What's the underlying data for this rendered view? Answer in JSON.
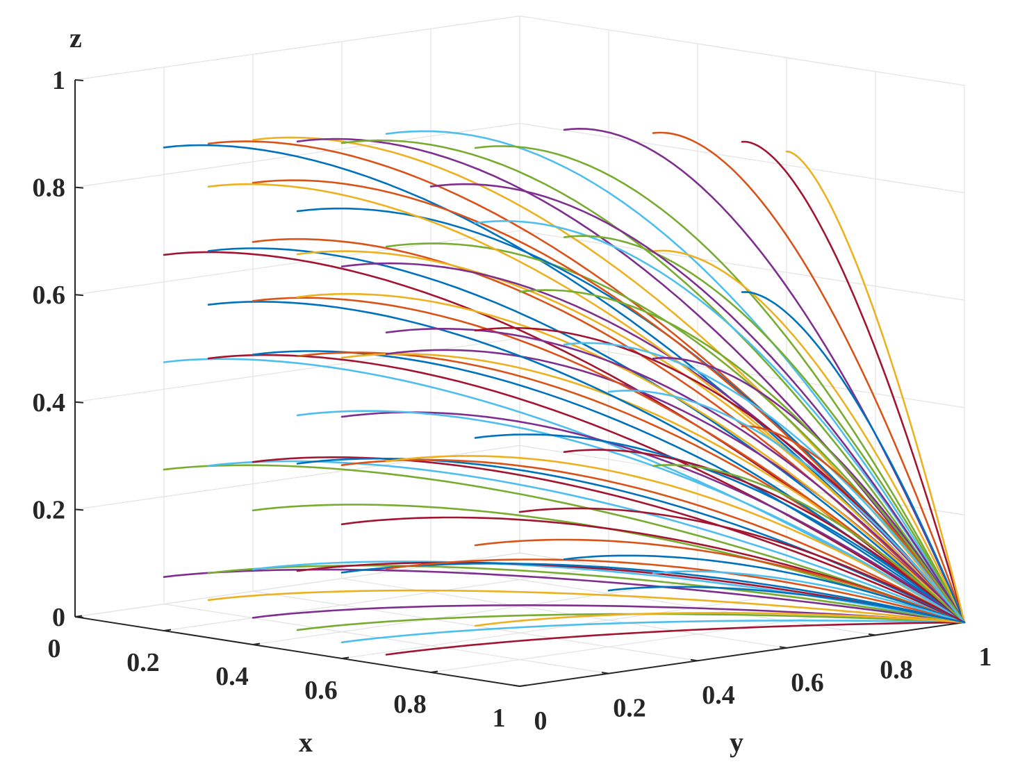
{
  "chart_data": {
    "type": "line3d",
    "xlabel": "x",
    "ylabel": "y",
    "zlabel": "z",
    "xlim": [
      0,
      1
    ],
    "ylim": [
      0,
      1
    ],
    "zlim": [
      0,
      1
    ],
    "x_ticks": [
      "0",
      "0.2",
      "0.4",
      "0.6",
      "0.8",
      "1"
    ],
    "y_ticks": [
      "0",
      "0.2",
      "0.4",
      "0.6",
      "0.8",
      "1"
    ],
    "z_ticks": [
      "0",
      "0.2",
      "0.4",
      "0.6",
      "0.8",
      "1"
    ],
    "grid": true,
    "converges_to": [
      1,
      1,
      0
    ],
    "colors": [
      "#0072BD",
      "#D95319",
      "#EDB120",
      "#7E2F8E",
      "#77AC30",
      "#4DBEEE",
      "#A2142F"
    ],
    "series_starts": [
      [
        0.2,
        0.0,
        0.9
      ],
      [
        0.3,
        0.0,
        0.92
      ],
      [
        0.4,
        0.0,
        0.94
      ],
      [
        0.5,
        0.0,
        0.95
      ],
      [
        0.6,
        0.0,
        0.96
      ],
      [
        0.7,
        0.0,
        0.99
      ],
      [
        0.2,
        0.0,
        0.7
      ],
      [
        0.3,
        0.0,
        0.72
      ],
      [
        0.4,
        0.0,
        0.75
      ],
      [
        0.5,
        0.0,
        0.74
      ],
      [
        0.6,
        0.0,
        0.73
      ],
      [
        0.7,
        0.0,
        0.78
      ],
      [
        0.2,
        0.0,
        0.5
      ],
      [
        0.3,
        0.0,
        0.52
      ],
      [
        0.4,
        0.0,
        0.54
      ],
      [
        0.5,
        0.0,
        0.55
      ],
      [
        0.6,
        0.0,
        0.56
      ],
      [
        0.7,
        0.0,
        0.58
      ],
      [
        0.2,
        0.0,
        0.3
      ],
      [
        0.3,
        0.0,
        0.32
      ],
      [
        0.4,
        0.0,
        0.34
      ],
      [
        0.5,
        0.0,
        0.35
      ],
      [
        0.6,
        0.0,
        0.36
      ],
      [
        0.7,
        0.0,
        0.38
      ],
      [
        0.2,
        0.0,
        0.1
      ],
      [
        0.3,
        0.0,
        0.12
      ],
      [
        0.4,
        0.0,
        0.14
      ],
      [
        0.5,
        0.0,
        0.15
      ],
      [
        0.6,
        0.0,
        0.16
      ],
      [
        0.7,
        0.0,
        0.18
      ],
      [
        0.3,
        0.0,
        0.07
      ],
      [
        0.4,
        0.0,
        0.05
      ],
      [
        0.5,
        0.0,
        0.04
      ],
      [
        0.6,
        0.0,
        0.03
      ],
      [
        0.7,
        0.0,
        0.02
      ],
      [
        0.3,
        0.0,
        0.62
      ],
      [
        0.4,
        0.0,
        0.64
      ],
      [
        0.5,
        0.0,
        0.66
      ],
      [
        0.6,
        0.0,
        0.45
      ],
      [
        0.4,
        0.0,
        0.25
      ],
      [
        0.5,
        0.0,
        0.44
      ],
      [
        0.6,
        0.0,
        0.25
      ],
      [
        0.5,
        0.0,
        0.82
      ],
      [
        0.4,
        0.0,
        0.86
      ],
      [
        0.3,
        0.0,
        0.84
      ],
      [
        0.7,
        0.0,
        0.62
      ],
      [
        0.7,
        0.2,
        0.94
      ],
      [
        0.7,
        0.2,
        0.8
      ],
      [
        0.7,
        0.2,
        0.6
      ],
      [
        0.7,
        0.2,
        0.4
      ],
      [
        0.7,
        0.2,
        0.2
      ],
      [
        0.7,
        0.2,
        0.05
      ],
      [
        0.7,
        0.4,
        0.95
      ],
      [
        0.7,
        0.4,
        0.75
      ],
      [
        0.7,
        0.4,
        0.55
      ],
      [
        0.7,
        0.4,
        0.35
      ],
      [
        0.7,
        0.4,
        0.15
      ],
      [
        0.7,
        0.6,
        0.92
      ],
      [
        0.7,
        0.6,
        0.7
      ],
      [
        0.7,
        0.6,
        0.5
      ],
      [
        0.7,
        0.6,
        0.3
      ],
      [
        0.7,
        0.6,
        0.1
      ],
      [
        0.7,
        0.8,
        0.88
      ],
      [
        0.7,
        0.8,
        0.6
      ],
      [
        0.7,
        0.8,
        0.35
      ],
      [
        0.7,
        0.9,
        0.85
      ],
      [
        0.7,
        0.1,
        0.88
      ],
      [
        0.7,
        0.3,
        0.66
      ],
      [
        0.7,
        0.5,
        0.45
      ],
      [
        0.7,
        0.3,
        0.25
      ],
      [
        0.7,
        0.5,
        0.08
      ]
    ]
  }
}
